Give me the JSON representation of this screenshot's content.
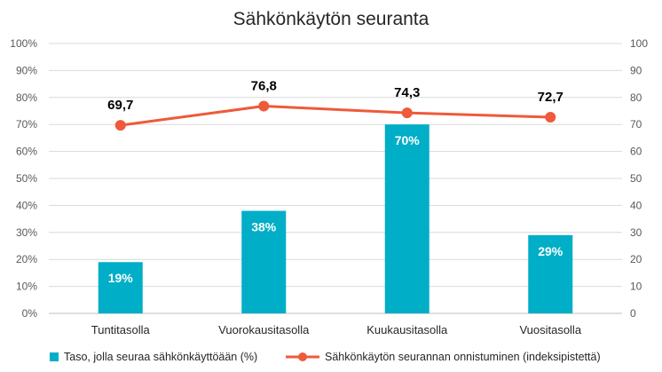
{
  "chart_data": {
    "type": "bar",
    "title": "Sähkönkäytön seuranta",
    "categories": [
      "Tuntitasolla",
      "Vuorokausitasolla",
      "Kuukausitasolla",
      "Vuositasolla"
    ],
    "series": [
      {
        "name": "Taso, jolla seuraa sähkönkäyttöään (%)",
        "type": "bar",
        "axis": "left",
        "values": [
          19,
          38,
          70,
          29
        ],
        "labels": [
          "19%",
          "38%",
          "70%",
          "29%"
        ],
        "color": "#00AEC7"
      },
      {
        "name": "Sähkönkäytön seurannan onnistuminen (indeksipistettä)",
        "type": "line",
        "axis": "right",
        "values": [
          69.7,
          76.8,
          74.3,
          72.7
        ],
        "labels": [
          "69,7",
          "76,8",
          "74,3",
          "72,7"
        ],
        "color": "#EE5A3A"
      }
    ],
    "y_left": {
      "ylim": [
        0,
        100
      ],
      "ticks": [
        "0%",
        "10%",
        "20%",
        "30%",
        "40%",
        "50%",
        "60%",
        "70%",
        "80%",
        "90%",
        "100%"
      ]
    },
    "y_right": {
      "ylim": [
        0,
        100
      ],
      "ticks": [
        "0",
        "10",
        "20",
        "30",
        "40",
        "50",
        "60",
        "70",
        "80",
        "90",
        "100"
      ]
    },
    "grid": true,
    "legend_position": "bottom"
  }
}
